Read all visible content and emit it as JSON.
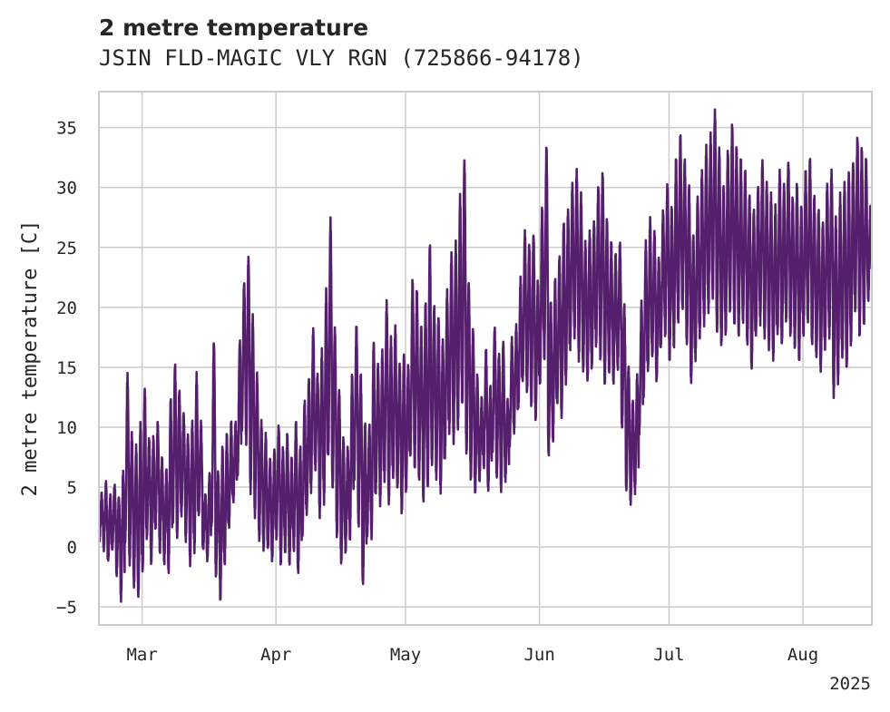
{
  "chart_data": {
    "type": "line",
    "title": "2 metre temperature",
    "subtitle": "JSIN FLD-MAGIC VLY RGN (725866-94178)",
    "xlabel": "",
    "ylabel": "2 metre temperature [C]",
    "year_label": "2025",
    "x_range": [
      "2025-02-19",
      "2025-08-16"
    ],
    "ylim": [
      -6.5,
      38
    ],
    "y_ticks": [
      -5,
      0,
      5,
      10,
      15,
      20,
      25,
      30,
      35
    ],
    "x_ticks": [
      {
        "date": "2025-03-01",
        "label": "Mar"
      },
      {
        "date": "2025-04-01",
        "label": "Apr"
      },
      {
        "date": "2025-05-01",
        "label": "May"
      },
      {
        "date": "2025-06-01",
        "label": "Jun"
      },
      {
        "date": "2025-07-01",
        "label": "Jul"
      },
      {
        "date": "2025-08-01",
        "label": "Aug"
      }
    ],
    "grid": true,
    "legend": "none",
    "series": [
      {
        "color": "#561f6e",
        "resolution": "hourly",
        "daily_min_max": [
          [
            "2025-02-19",
            1,
            4
          ],
          [
            "2025-02-20",
            0,
            5
          ],
          [
            "2025-02-21",
            -1,
            4
          ],
          [
            "2025-02-22",
            0,
            5
          ],
          [
            "2025-02-23",
            -2,
            4
          ],
          [
            "2025-02-24",
            -4,
            6
          ],
          [
            "2025-02-25",
            1,
            14
          ],
          [
            "2025-02-26",
            -1,
            9
          ],
          [
            "2025-02-27",
            -3,
            8
          ],
          [
            "2025-02-28",
            -4,
            10
          ],
          [
            "2025-03-01",
            -2,
            13
          ],
          [
            "2025-03-02",
            1,
            9
          ],
          [
            "2025-03-03",
            -1,
            9
          ],
          [
            "2025-03-04",
            2,
            10
          ],
          [
            "2025-03-05",
            0,
            7
          ],
          [
            "2025-03-06",
            -1,
            6
          ],
          [
            "2025-03-07",
            -2,
            12
          ],
          [
            "2025-03-08",
            2,
            15
          ],
          [
            "2025-03-09",
            1,
            13
          ],
          [
            "2025-03-10",
            3,
            11
          ],
          [
            "2025-03-11",
            1,
            9
          ],
          [
            "2025-03-12",
            -1,
            10
          ],
          [
            "2025-03-13",
            0,
            14
          ],
          [
            "2025-03-14",
            3,
            10
          ],
          [
            "2025-03-15",
            0,
            4
          ],
          [
            "2025-03-16",
            -1,
            6
          ],
          [
            "2025-03-17",
            2,
            17
          ],
          [
            "2025-03-18",
            -2,
            6
          ],
          [
            "2025-03-19",
            -4,
            8
          ],
          [
            "2025-03-20",
            -1,
            9
          ],
          [
            "2025-03-21",
            2,
            10
          ],
          [
            "2025-03-22",
            4,
            10
          ],
          [
            "2025-03-23",
            6,
            17
          ],
          [
            "2025-03-24",
            10,
            22
          ],
          [
            "2025-03-25",
            9,
            24
          ],
          [
            "2025-03-26",
            5,
            19
          ],
          [
            "2025-03-27",
            3,
            14
          ],
          [
            "2025-03-28",
            1,
            10
          ],
          [
            "2025-03-29",
            0,
            9
          ],
          [
            "2025-03-30",
            0,
            7
          ],
          [
            "2025-03-31",
            -1,
            8
          ],
          [
            "2025-04-01",
            1,
            10
          ],
          [
            "2025-04-02",
            -1,
            8
          ],
          [
            "2025-04-03",
            0,
            9
          ],
          [
            "2025-04-04",
            -1,
            7
          ],
          [
            "2025-04-05",
            0,
            10
          ],
          [
            "2025-04-06",
            -2,
            8
          ],
          [
            "2025-04-07",
            1,
            12
          ],
          [
            "2025-04-08",
            3,
            14
          ],
          [
            "2025-04-09",
            5,
            18
          ],
          [
            "2025-04-10",
            7,
            14
          ],
          [
            "2025-04-11",
            3,
            16
          ],
          [
            "2025-04-12",
            4,
            21
          ],
          [
            "2025-04-13",
            8,
            27
          ],
          [
            "2025-04-14",
            5,
            18
          ],
          [
            "2025-04-15",
            1,
            13
          ],
          [
            "2025-04-16",
            -1,
            9
          ],
          [
            "2025-04-17",
            0,
            8
          ],
          [
            "2025-04-18",
            1,
            14
          ],
          [
            "2025-04-19",
            6,
            18
          ],
          [
            "2025-04-20",
            2,
            14
          ],
          [
            "2025-04-21",
            -3,
            10
          ],
          [
            "2025-04-22",
            1,
            10
          ],
          [
            "2025-04-23",
            1,
            17
          ],
          [
            "2025-04-24",
            5,
            15
          ],
          [
            "2025-04-25",
            4,
            16
          ],
          [
            "2025-04-26",
            6,
            20
          ],
          [
            "2025-04-27",
            4,
            17
          ],
          [
            "2025-04-28",
            6,
            18
          ],
          [
            "2025-04-29",
            5,
            15
          ],
          [
            "2025-04-30",
            3,
            16
          ],
          [
            "2025-05-01",
            5,
            15
          ],
          [
            "2025-05-02",
            8,
            22
          ],
          [
            "2025-05-03",
            7,
            21
          ],
          [
            "2025-05-04",
            6,
            18
          ],
          [
            "2025-05-05",
            4,
            20
          ],
          [
            "2025-05-06",
            5,
            25
          ],
          [
            "2025-05-07",
            7,
            20
          ],
          [
            "2025-05-08",
            6,
            19
          ],
          [
            "2025-05-09",
            5,
            17
          ],
          [
            "2025-05-10",
            8,
            21
          ],
          [
            "2025-05-11",
            10,
            24
          ],
          [
            "2025-05-12",
            9,
            25
          ],
          [
            "2025-05-13",
            10,
            29
          ],
          [
            "2025-05-14",
            12,
            32
          ],
          [
            "2025-05-15",
            8,
            22
          ],
          [
            "2025-05-16",
            6,
            18
          ],
          [
            "2025-05-17",
            5,
            14
          ],
          [
            "2025-05-18",
            6,
            12
          ],
          [
            "2025-05-19",
            7,
            16
          ],
          [
            "2025-05-20",
            5,
            13
          ],
          [
            "2025-05-21",
            8,
            18
          ],
          [
            "2025-05-22",
            6,
            16
          ],
          [
            "2025-05-23",
            5,
            17
          ],
          [
            "2025-05-24",
            6,
            12
          ],
          [
            "2025-05-25",
            9,
            17
          ],
          [
            "2025-05-26",
            10,
            18
          ],
          [
            "2025-05-27",
            12,
            22
          ],
          [
            "2025-05-28",
            14,
            26
          ],
          [
            "2025-05-29",
            13,
            25
          ],
          [
            "2025-05-30",
            12,
            26
          ],
          [
            "2025-05-31",
            11,
            22
          ],
          [
            "2025-06-01",
            14,
            28
          ],
          [
            "2025-06-02",
            16,
            33
          ],
          [
            "2025-06-03",
            8,
            20
          ],
          [
            "2025-06-04",
            9,
            22
          ],
          [
            "2025-06-05",
            12,
            24
          ],
          [
            "2025-06-06",
            11,
            27
          ],
          [
            "2025-06-07",
            14,
            28
          ],
          [
            "2025-06-08",
            17,
            30
          ],
          [
            "2025-06-09",
            18,
            31
          ],
          [
            "2025-06-10",
            16,
            29
          ],
          [
            "2025-06-11",
            15,
            25
          ],
          [
            "2025-06-12",
            14,
            26
          ],
          [
            "2025-06-13",
            15,
            27
          ],
          [
            "2025-06-14",
            17,
            30
          ],
          [
            "2025-06-15",
            16,
            31
          ],
          [
            "2025-06-16",
            14,
            27
          ],
          [
            "2025-06-17",
            15,
            25
          ],
          [
            "2025-06-18",
            14,
            24
          ],
          [
            "2025-06-19",
            15,
            25
          ],
          [
            "2025-06-20",
            10,
            20
          ],
          [
            "2025-06-21",
            5,
            15
          ],
          [
            "2025-06-22",
            4,
            12
          ],
          [
            "2025-06-23",
            5,
            14
          ],
          [
            "2025-06-24",
            10,
            20
          ],
          [
            "2025-06-25",
            13,
            25
          ],
          [
            "2025-06-26",
            15,
            27
          ],
          [
            "2025-06-27",
            16,
            26
          ],
          [
            "2025-06-28",
            14,
            24
          ],
          [
            "2025-06-29",
            17,
            28
          ],
          [
            "2025-06-30",
            18,
            30
          ],
          [
            "2025-07-01",
            16,
            28
          ],
          [
            "2025-07-02",
            17,
            32
          ],
          [
            "2025-07-03",
            19,
            34
          ],
          [
            "2025-07-04",
            20,
            32
          ],
          [
            "2025-07-05",
            17,
            30
          ],
          [
            "2025-07-06",
            14,
            26
          ],
          [
            "2025-07-07",
            16,
            29
          ],
          [
            "2025-07-08",
            18,
            31
          ],
          [
            "2025-07-09",
            19,
            33
          ],
          [
            "2025-07-10",
            20,
            34
          ],
          [
            "2025-07-11",
            21,
            36
          ],
          [
            "2025-07-12",
            18,
            33
          ],
          [
            "2025-07-13",
            17,
            30
          ],
          [
            "2025-07-14",
            18,
            33
          ],
          [
            "2025-07-15",
            20,
            35
          ],
          [
            "2025-07-16",
            19,
            33
          ],
          [
            "2025-07-17",
            18,
            32
          ],
          [
            "2025-07-18",
            19,
            31
          ],
          [
            "2025-07-19",
            17,
            29
          ],
          [
            "2025-07-20",
            15,
            28
          ],
          [
            "2025-07-21",
            18,
            30
          ],
          [
            "2025-07-22",
            19,
            32
          ],
          [
            "2025-07-23",
            18,
            30
          ],
          [
            "2025-07-24",
            17,
            29
          ],
          [
            "2025-07-25",
            16,
            28
          ],
          [
            "2025-07-26",
            18,
            31
          ],
          [
            "2025-07-27",
            17,
            30
          ],
          [
            "2025-07-28",
            19,
            32
          ],
          [
            "2025-07-29",
            18,
            29
          ],
          [
            "2025-07-30",
            17,
            30
          ],
          [
            "2025-07-31",
            16,
            28
          ],
          [
            "2025-08-01",
            18,
            31
          ],
          [
            "2025-08-02",
            19,
            32
          ],
          [
            "2025-08-03",
            17,
            29
          ],
          [
            "2025-08-04",
            16,
            28
          ],
          [
            "2025-08-05",
            15,
            27
          ],
          [
            "2025-08-06",
            17,
            30
          ],
          [
            "2025-08-07",
            18,
            31
          ],
          [
            "2025-08-08",
            13,
            27
          ],
          [
            "2025-08-09",
            14,
            29
          ],
          [
            "2025-08-10",
            16,
            30
          ],
          [
            "2025-08-11",
            15,
            31
          ],
          [
            "2025-08-12",
            17,
            32
          ],
          [
            "2025-08-13",
            20,
            34
          ],
          [
            "2025-08-14",
            18,
            33
          ],
          [
            "2025-08-15",
            19,
            32
          ],
          [
            "2025-08-16",
            21,
            28
          ]
        ]
      }
    ]
  }
}
